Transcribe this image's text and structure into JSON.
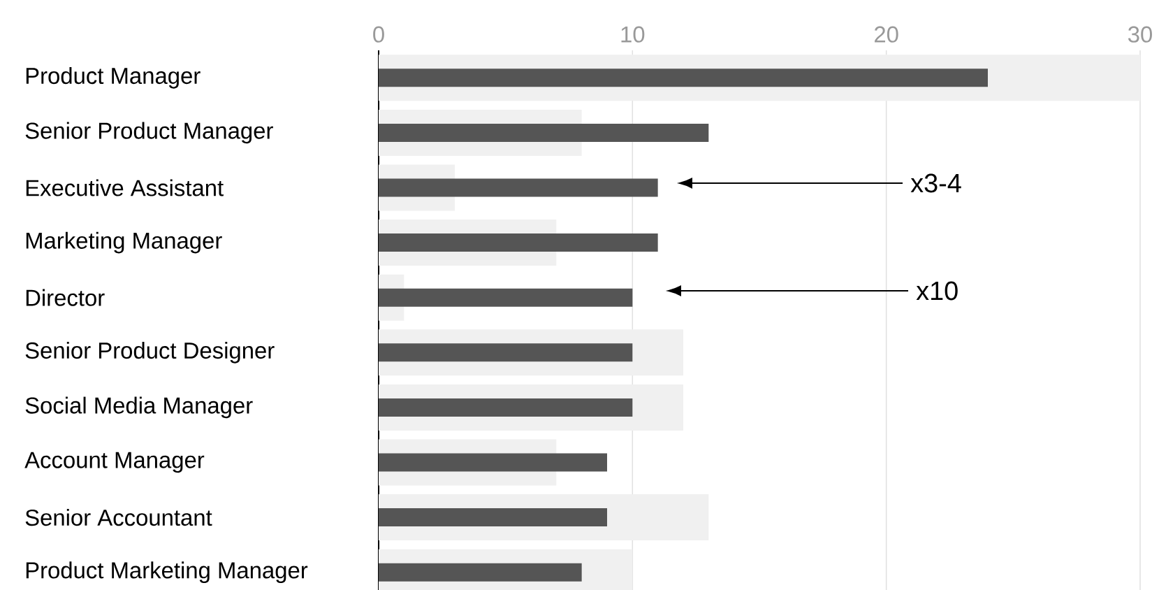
{
  "chart_data": {
    "type": "bar",
    "orientation": "horizontal",
    "categories": [
      "Product Manager",
      "Senior Product Manager",
      "Executive Assistant",
      "Marketing Manager",
      "Director",
      "Senior Product Designer",
      "Social Media Manager",
      "Account Manager",
      "Senior Accountant",
      "Product Marketing Manager"
    ],
    "series": [
      {
        "color": "#f0f0f0",
        "values": [
          30,
          8,
          3,
          7,
          1,
          12,
          12,
          7,
          13,
          10
        ]
      },
      {
        "color": "#555555",
        "values": [
          24,
          13,
          11,
          11,
          10,
          10,
          10,
          9,
          9,
          8
        ]
      }
    ],
    "xlim": [
      0,
      30
    ],
    "xticks": [
      0,
      10,
      20,
      30
    ],
    "grid": "x",
    "annotations": [
      "x3-4",
      "x10"
    ]
  }
}
